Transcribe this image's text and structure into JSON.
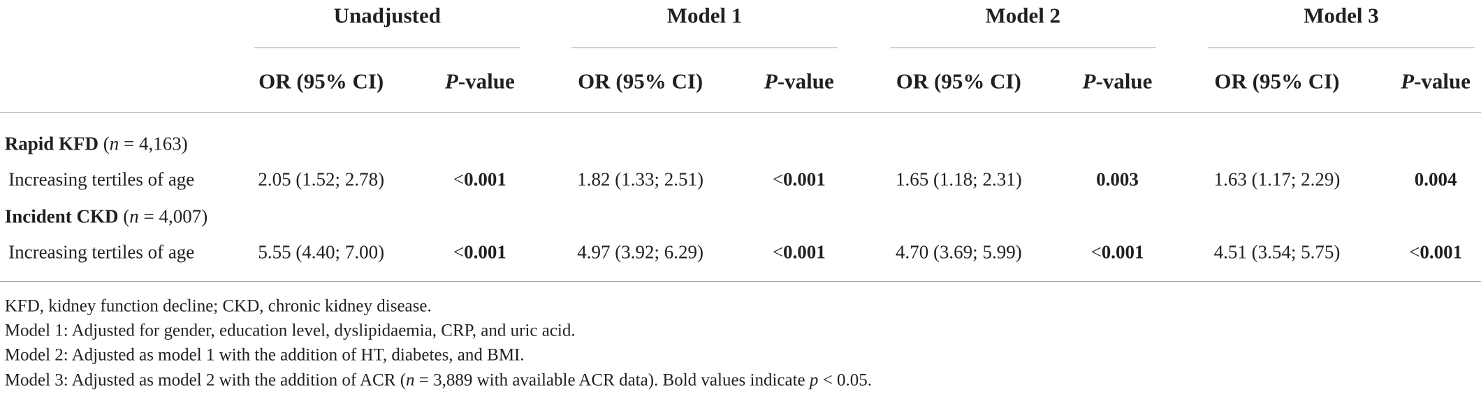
{
  "header": {
    "groups": [
      "Unadjusted",
      "Model 1",
      "Model 2",
      "Model 3"
    ],
    "columns": [
      [
        {
          "text": "OR (95% CI)"
        }
      ],
      [
        {
          "italic": "P"
        },
        {
          "text": "-value"
        }
      ],
      [
        {
          "text": "OR (95% CI)"
        }
      ],
      [
        {
          "italic": "P"
        },
        {
          "text": "-value"
        }
      ],
      [
        {
          "text": "OR (95% CI)"
        }
      ],
      [
        {
          "italic": "P"
        },
        {
          "text": "-value"
        }
      ],
      [
        {
          "text": "OR (95% CI)"
        }
      ],
      [
        {
          "italic": "P"
        },
        {
          "text": "-value"
        }
      ]
    ]
  },
  "sections": [
    {
      "label": [
        {
          "bold": "Rapid KFD"
        },
        {
          "text": " ("
        },
        {
          "italic": "n"
        },
        {
          "text": " = 4,163)"
        }
      ],
      "rows": [
        {
          "label": "Increasing tertiles of age",
          "cells": [
            [
              {
                "text": "2.05 (1.52; 2.78)"
              }
            ],
            [
              {
                "text": "<"
              },
              {
                "bold": "0.001"
              }
            ],
            [
              {
                "text": "1.82 (1.33; 2.51)"
              }
            ],
            [
              {
                "text": "<"
              },
              {
                "bold": "0.001"
              }
            ],
            [
              {
                "text": "1.65 (1.18; 2.31)"
              }
            ],
            [
              {
                "bold": "0.003"
              }
            ],
            [
              {
                "text": "1.63 (1.17; 2.29)"
              }
            ],
            [
              {
                "bold": "0.004"
              }
            ]
          ]
        }
      ]
    },
    {
      "label": [
        {
          "bold": "Incident CKD"
        },
        {
          "text": " ("
        },
        {
          "italic": "n"
        },
        {
          "text": " = 4,007)"
        }
      ],
      "rows": [
        {
          "label": "Increasing tertiles of age",
          "cells": [
            [
              {
                "text": "5.55 (4.40; 7.00)"
              }
            ],
            [
              {
                "text": "<"
              },
              {
                "bold": "0.001"
              }
            ],
            [
              {
                "text": "4.97 (3.92; 6.29)"
              }
            ],
            [
              {
                "text": "<"
              },
              {
                "bold": "0.001"
              }
            ],
            [
              {
                "text": "4.70 (3.69; 5.99)"
              }
            ],
            [
              {
                "text": "<"
              },
              {
                "bold": "0.001"
              }
            ],
            [
              {
                "text": "4.51 (3.54; 5.75)"
              }
            ],
            [
              {
                "text": "<"
              },
              {
                "bold": "0.001"
              }
            ]
          ]
        }
      ]
    }
  ],
  "footnotes": [
    [
      {
        "text": "KFD, kidney function decline; CKD, chronic kidney disease."
      }
    ],
    [
      {
        "text": "Model 1: Adjusted for gender, education level, dyslipidaemia, CRP, and uric acid."
      }
    ],
    [
      {
        "text": "Model 2: Adjusted as model 1 with the addition of HT, diabetes, and BMI."
      }
    ],
    [
      {
        "text": "Model 3: Adjusted as model 2 with the addition of ACR ("
      },
      {
        "italic": "n"
      },
      {
        "text": " = 3,889 with available ACR data). Bold values indicate "
      },
      {
        "italic": "p"
      },
      {
        "text": " < 0.05."
      }
    ]
  ]
}
